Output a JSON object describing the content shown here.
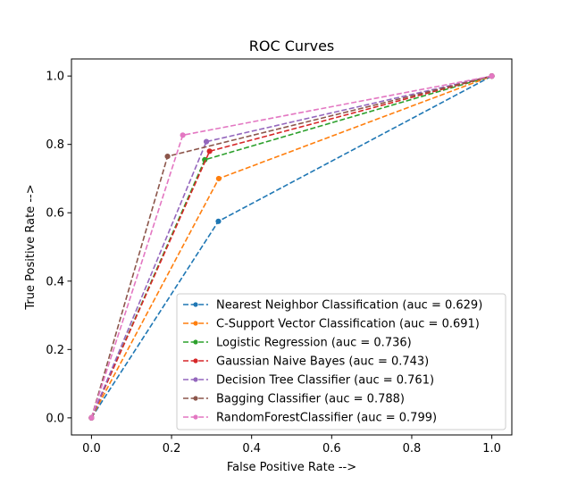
{
  "chart_data": {
    "type": "line",
    "title": "ROC Curves",
    "xlabel": "False Positive Rate -->",
    "ylabel": "True Positive Rate -->",
    "xlim": [
      -0.05,
      1.05
    ],
    "ylim": [
      -0.05,
      1.05
    ],
    "xticks": [
      0.0,
      0.2,
      0.4,
      0.6,
      0.8,
      1.0
    ],
    "yticks": [
      0.0,
      0.2,
      0.4,
      0.6,
      0.8,
      1.0
    ],
    "xtick_labels": [
      "0.0",
      "0.2",
      "0.4",
      "0.6",
      "0.8",
      "1.0"
    ],
    "ytick_labels": [
      "0.0",
      "0.2",
      "0.4",
      "0.6",
      "0.8",
      "1.0"
    ],
    "grid": false,
    "legend_position": "lower-right",
    "line_style": "dashed",
    "marker": "circle",
    "series": [
      {
        "name": "Nearest Neighbor Classification (auc = 0.629)",
        "color": "#1f77b4",
        "x": [
          0,
          0.317,
          1
        ],
        "y": [
          0,
          0.575,
          1
        ]
      },
      {
        "name": "C-Support Vector Classification (auc = 0.691)",
        "color": "#ff7f0e",
        "x": [
          0,
          0.318,
          1
        ],
        "y": [
          0,
          0.7,
          1
        ]
      },
      {
        "name": "Logistic Regression (auc = 0.736)",
        "color": "#2ca02c",
        "x": [
          0,
          0.283,
          1
        ],
        "y": [
          0,
          0.755,
          1
        ]
      },
      {
        "name": "Gaussian Naive Bayes (auc = 0.743)",
        "color": "#d62728",
        "x": [
          0,
          0.295,
          1
        ],
        "y": [
          0,
          0.78,
          1
        ]
      },
      {
        "name": "Decision Tree Classifier (auc = 0.761)",
        "color": "#9467bd",
        "x": [
          0,
          0.287,
          1
        ],
        "y": [
          0,
          0.808,
          1
        ]
      },
      {
        "name": "Bagging Classifier (auc = 0.788)",
        "color": "#8c564b",
        "x": [
          0,
          0.19,
          1
        ],
        "y": [
          0,
          0.765,
          1
        ]
      },
      {
        "name": "RandomForestClassifier (auc = 0.799)",
        "color": "#e377c2",
        "x": [
          0,
          0.228,
          1
        ],
        "y": [
          0,
          0.827,
          1
        ]
      }
    ]
  }
}
